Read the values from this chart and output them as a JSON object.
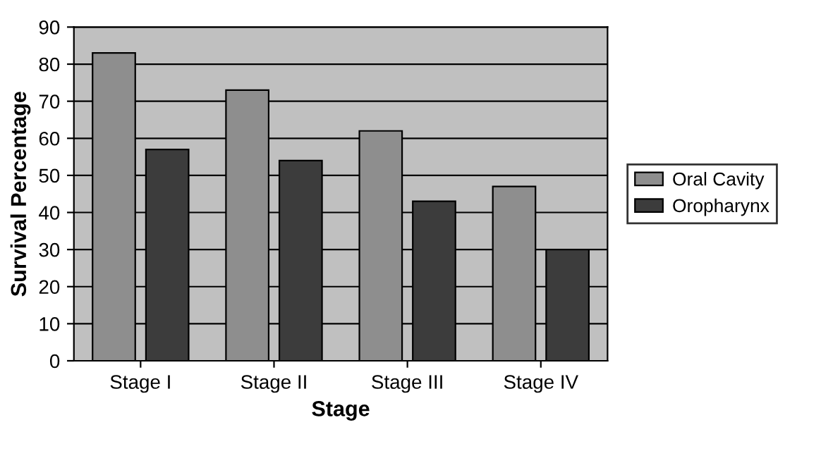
{
  "chart_data": {
    "type": "bar",
    "xlabel": "Stage",
    "ylabel": "Survival Percentage",
    "categories": [
      "Stage I",
      "Stage II",
      "Stage III",
      "Stage IV"
    ],
    "series": [
      {
        "name": "Oral Cavity",
        "color": "#8e8e8e",
        "values": [
          83,
          73,
          62,
          47
        ]
      },
      {
        "name": "Oropharynx",
        "color": "#3c3c3c",
        "values": [
          57,
          54,
          43,
          30
        ]
      }
    ],
    "ylim": [
      0,
      90
    ],
    "yticks": [
      0,
      10,
      20,
      30,
      40,
      50,
      60,
      70,
      80,
      90
    ],
    "grid": "y",
    "legend": "right"
  }
}
